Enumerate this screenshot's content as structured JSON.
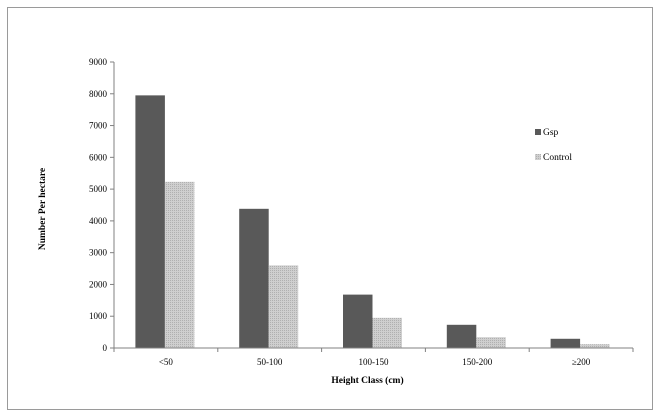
{
  "chart_data": {
    "type": "bar",
    "title": "",
    "xlabel": "Height Class (cm)",
    "ylabel": "Number Per hectare",
    "categories": [
      "<50",
      "50-100",
      "100-150",
      "150-200",
      "≥200"
    ],
    "series": [
      {
        "name": "Gsp",
        "values": [
          7950,
          4380,
          1680,
          730,
          290
        ],
        "color": "#595959"
      },
      {
        "name": "Control",
        "values": [
          5230,
          2600,
          950,
          340,
          120
        ],
        "color": "#c8c8c8"
      }
    ],
    "ylim": [
      0,
      9000
    ],
    "yticks": [
      "0",
      "1000",
      "2000",
      "3000",
      "4000",
      "5000",
      "6000",
      "7000",
      "8000",
      "9000"
    ],
    "grid": false,
    "legend_position": "right"
  }
}
